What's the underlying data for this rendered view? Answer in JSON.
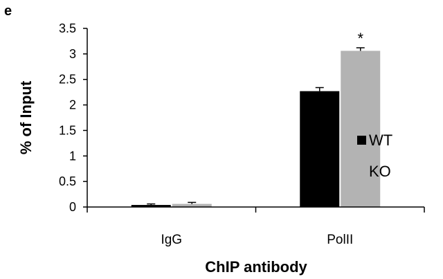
{
  "panel_label": "e",
  "chart_data": {
    "type": "bar",
    "categories": [
      "IgG",
      "PolII"
    ],
    "series": [
      {
        "name": "WT",
        "values": [
          0.04,
          2.27
        ],
        "errors": [
          0.02,
          0.07
        ],
        "color": "#000000"
      },
      {
        "name": "KO",
        "values": [
          0.06,
          3.06
        ],
        "errors": [
          0.03,
          0.06
        ],
        "color": "#b3b3b3"
      }
    ],
    "xlabel": "ChIP antibody",
    "ylabel": "% of Input",
    "ylim": [
      0,
      3.5
    ],
    "yticks": [
      "0",
      "0.5",
      "1",
      "1.5",
      "2",
      "2.5",
      "3",
      "3.5"
    ],
    "annotations": [
      {
        "category": "PolII",
        "series": "KO",
        "text": "*"
      }
    ],
    "legend_position": "right",
    "grid": false
  }
}
